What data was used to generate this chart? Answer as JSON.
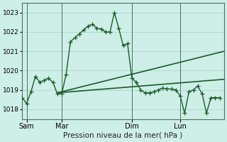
{
  "xlabel": "Pression niveau de la mer( hPa )",
  "bg_color": "#ceeee8",
  "grid_color": "#a8d8d0",
  "line_color": "#1a5c28",
  "ylim": [
    1017.5,
    1023.5
  ],
  "yticks": [
    1018,
    1019,
    1020,
    1021,
    1022,
    1023
  ],
  "xlim": [
    0,
    46
  ],
  "xtick_positions": [
    1,
    9,
    25,
    36
  ],
  "xtick_labels": [
    "Sam",
    "Mar",
    "Dim",
    "Lun"
  ],
  "vline_positions": [
    1,
    9,
    25,
    36
  ],
  "line1_x": [
    0,
    1,
    2,
    3,
    4,
    5,
    6,
    7,
    8,
    9,
    10,
    11,
    12,
    13,
    14,
    15,
    16,
    17,
    18,
    19,
    20,
    21,
    22,
    23,
    24,
    25,
    26,
    27,
    28,
    29,
    30,
    31,
    32,
    33,
    34,
    35,
    36,
    37,
    38,
    39,
    40,
    41,
    42,
    43,
    44,
    45
  ],
  "line1_y": [
    1018.6,
    1018.3,
    1018.9,
    1019.7,
    1019.4,
    1019.5,
    1019.6,
    1019.4,
    1018.8,
    1018.8,
    1019.8,
    1021.5,
    1021.7,
    1021.9,
    1022.1,
    1022.3,
    1022.4,
    1022.2,
    1022.15,
    1022.0,
    1022.0,
    1023.0,
    1022.2,
    1021.3,
    1021.4,
    1019.6,
    1019.4,
    1019.0,
    1018.85,
    1018.85,
    1018.9,
    1019.0,
    1019.1,
    1019.05,
    1019.05,
    1019.0,
    1018.7,
    1017.8,
    1018.9,
    1019.0,
    1019.2,
    1018.8,
    1017.8,
    1018.6,
    1018.6,
    1018.6
  ],
  "line2_x": [
    8,
    46
  ],
  "line2_y": [
    1018.85,
    1021.0
  ],
  "line3_x": [
    8,
    46
  ],
  "line3_y": [
    1018.85,
    1019.55
  ],
  "marker": "+",
  "markersize": 4,
  "linewidth": 1.0,
  "lw_smooth": 1.2
}
